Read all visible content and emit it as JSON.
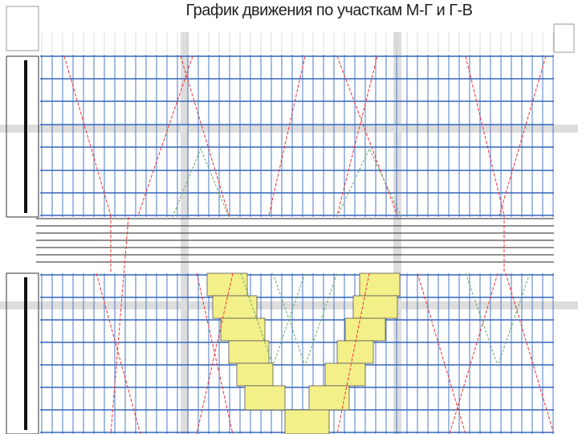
{
  "header": {
    "title": "График движения по участкам М-Г и Г-В"
  }
}
